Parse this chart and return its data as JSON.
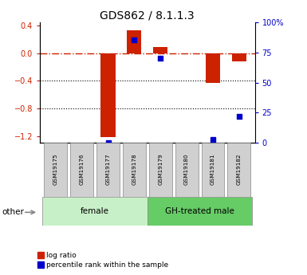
{
  "title": "GDS862 / 8.1.1.3",
  "samples": [
    "GSM19175",
    "GSM19176",
    "GSM19177",
    "GSM19178",
    "GSM19179",
    "GSM19180",
    "GSM19181",
    "GSM19182"
  ],
  "log_ratio": [
    0.0,
    0.0,
    -1.22,
    0.33,
    0.09,
    0.0,
    -0.43,
    -0.12
  ],
  "percentile_rank": [
    null,
    null,
    0.5,
    85.0,
    70.0,
    null,
    3.0,
    22.0
  ],
  "groups": [
    {
      "label": "female",
      "start": 0,
      "end": 4,
      "color": "#c8f0c8"
    },
    {
      "label": "GH-treated male",
      "start": 4,
      "end": 8,
      "color": "#66cc66"
    }
  ],
  "ylim_left": [
    -1.3,
    0.45
  ],
  "ylim_right": [
    0,
    100
  ],
  "yticks_left": [
    -1.2,
    -0.8,
    -0.4,
    0.0,
    0.4
  ],
  "yticks_right": [
    0,
    25,
    50,
    75,
    100
  ],
  "hline_y": 0.0,
  "dotted_lines": [
    -0.4,
    -0.8
  ],
  "bar_color": "#cc2200",
  "dot_color": "#0000cc",
  "bar_width": 0.55,
  "dot_size": 18,
  "legend_labels": [
    "log ratio",
    "percentile rank within the sample"
  ],
  "legend_colors": [
    "#cc2200",
    "#0000cc"
  ],
  "other_label": "other",
  "background_color": "#ffffff"
}
